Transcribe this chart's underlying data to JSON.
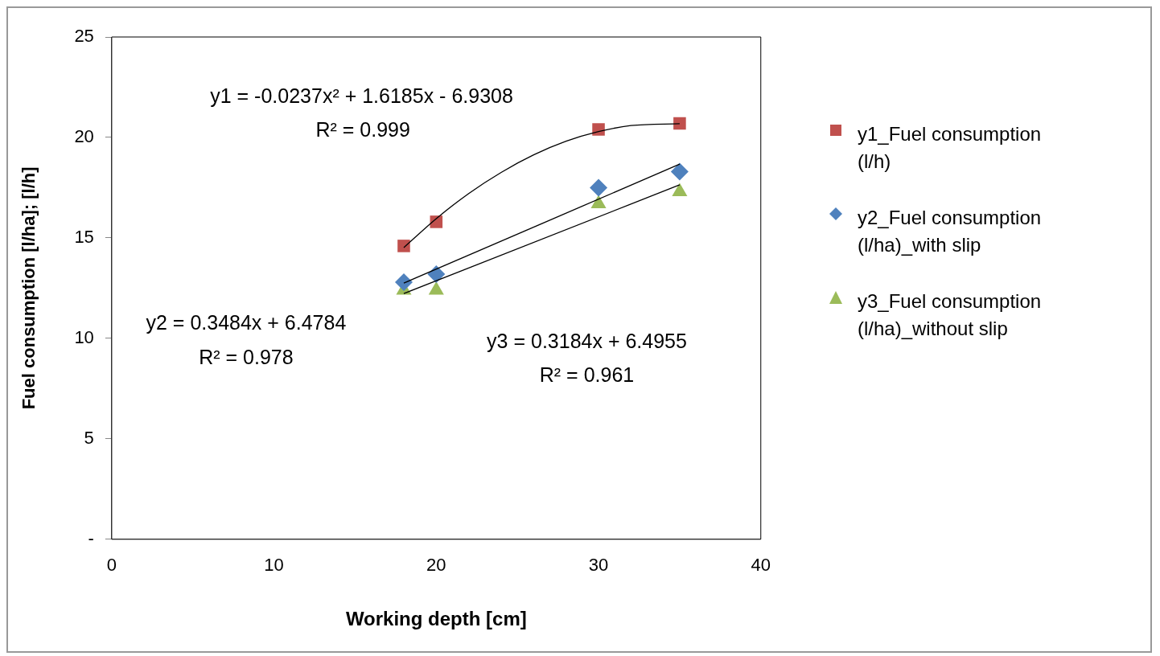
{
  "chart_data": {
    "type": "scatter",
    "xlabel": "Working depth [cm]",
    "ylabel": "Fuel consumption [l/ha]; [l/h]",
    "xlim": [
      0,
      40
    ],
    "xticks": [
      0,
      10,
      20,
      30,
      40
    ],
    "ylim": [
      0,
      25
    ],
    "yticks": [
      {
        "value": 0,
        "label": "-"
      },
      5,
      10,
      15,
      20,
      25
    ],
    "grid": false,
    "legend": "right",
    "series": [
      {
        "name": "y1_Fuel consumption (l/h)",
        "color": "#c0504d",
        "marker": "square",
        "x": [
          18,
          20,
          30,
          35
        ],
        "values": [
          14.6,
          15.8,
          20.4,
          20.7
        ]
      },
      {
        "name": "y2_Fuel consumption (l/ha)_with slip",
        "color": "#4f81bd",
        "marker": "diamond",
        "x": [
          18,
          20,
          30,
          35
        ],
        "values": [
          12.8,
          13.2,
          17.5,
          18.3
        ]
      },
      {
        "name": "y3_Fuel consumption (l/ha)_without slip",
        "color": "#9bbb59",
        "marker": "triangle",
        "x": [
          18,
          20,
          30,
          35
        ],
        "values": [
          12.4,
          12.4,
          16.7,
          17.3
        ]
      },
      {
        "type": "line",
        "color": "#000000",
        "marker": "none",
        "x": [
          18,
          20,
          22,
          24,
          26,
          28,
          30,
          32,
          35
        ],
        "values": [
          14.52,
          15.96,
          17.21,
          18.26,
          19.13,
          19.81,
          20.29,
          20.59,
          20.68
        ]
      },
      {
        "type": "line",
        "color": "#000000",
        "marker": "none",
        "x": [
          18,
          35
        ],
        "values": [
          12.75,
          18.67
        ]
      },
      {
        "type": "line",
        "color": "#000000",
        "marker": "none",
        "x": [
          18,
          35
        ],
        "values": [
          12.23,
          17.64
        ]
      }
    ],
    "annotations": [
      "y1 = -0.0237x² + 1.6185x - 6.9308",
      "R² = 0.999",
      "y2 = 0.3484x + 6.4784",
      "R² = 0.978",
      "y3 = 0.3184x + 6.4955",
      "R² = 0.961"
    ]
  }
}
